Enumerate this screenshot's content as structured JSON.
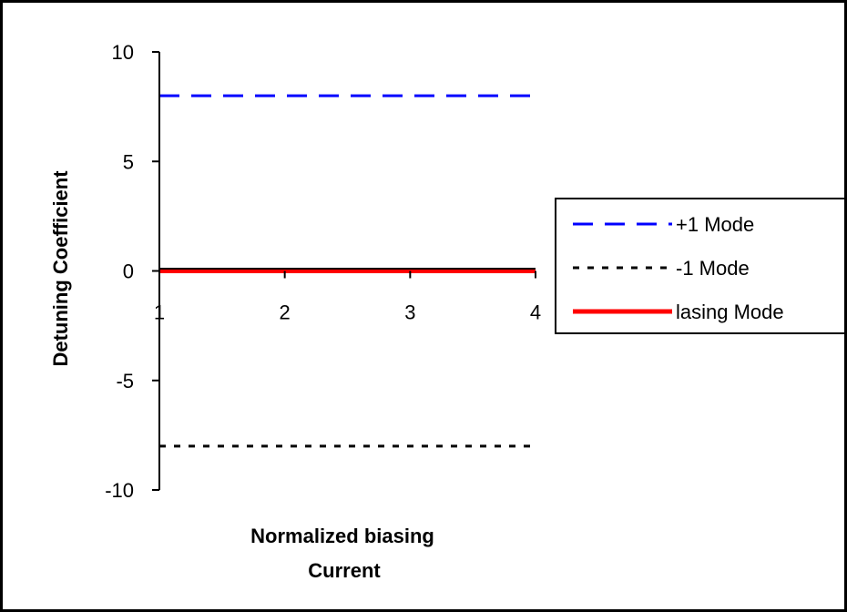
{
  "chart_data": {
    "type": "line",
    "title": "",
    "xlabel": [
      "Normalized biasing",
      "Current"
    ],
    "ylabel": "Detuning Coefficient",
    "x": [
      1,
      4
    ],
    "xlim": [
      1,
      4
    ],
    "ylim": [
      -10,
      10
    ],
    "xticks": [
      "1",
      "2",
      "3",
      "4"
    ],
    "yticks": [
      "10",
      "5",
      "0",
      "-5",
      "-10"
    ],
    "grid": false,
    "legend_position": "right",
    "series": [
      {
        "name": "+1 Mode",
        "values": [
          8,
          8
        ],
        "color": "#0000ff",
        "style": "dashed"
      },
      {
        "name": "-1 Mode",
        "values": [
          -8,
          -8
        ],
        "color": "#000000",
        "style": "dotted"
      },
      {
        "name": "lasing Mode",
        "values": [
          0,
          0
        ],
        "color": "#ff0000",
        "style": "solid"
      }
    ]
  }
}
